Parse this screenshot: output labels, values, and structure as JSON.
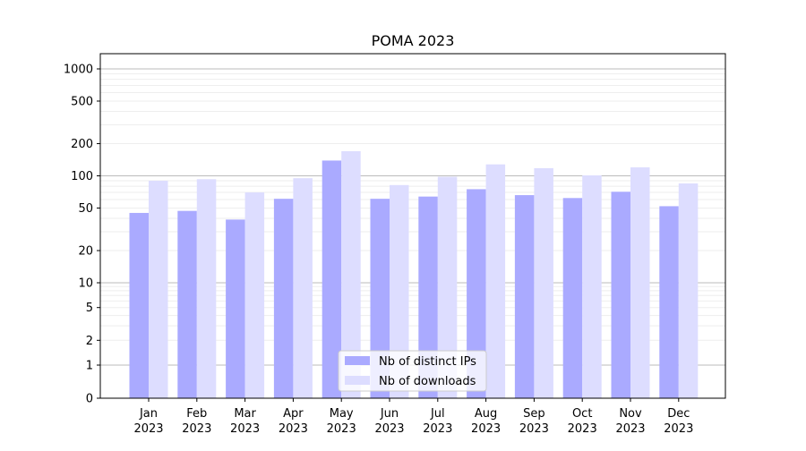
{
  "chart_data": {
    "type": "bar",
    "title": "POMA 2023",
    "xlabel": "",
    "ylabel": "",
    "yscale": "symlog",
    "ylim": [
      0,
      1200
    ],
    "yticks": [
      0,
      1,
      2,
      5,
      10,
      20,
      50,
      100,
      200,
      500,
      1000
    ],
    "grid": "y",
    "legend": "bottom-center",
    "categories": [
      [
        "Jan",
        "2023"
      ],
      [
        "Feb",
        "2023"
      ],
      [
        "Mar",
        "2023"
      ],
      [
        "Apr",
        "2023"
      ],
      [
        "May",
        "2023"
      ],
      [
        "Jun",
        "2023"
      ],
      [
        "Jul",
        "2023"
      ],
      [
        "Aug",
        "2023"
      ],
      [
        "Sep",
        "2023"
      ],
      [
        "Oct",
        "2023"
      ],
      [
        "Nov",
        "2023"
      ],
      [
        "Dec",
        "2023"
      ]
    ],
    "series": [
      {
        "name": "Nb of distinct IPs",
        "color": "#aaaaff",
        "values": [
          45,
          47,
          39,
          61,
          139,
          61,
          64,
          75,
          66,
          62,
          71,
          52
        ]
      },
      {
        "name": "Nb of downloads",
        "color": "#ddddff",
        "values": [
          90,
          93,
          70,
          95,
          170,
          82,
          98,
          128,
          118,
          101,
          120,
          85
        ]
      }
    ]
  }
}
